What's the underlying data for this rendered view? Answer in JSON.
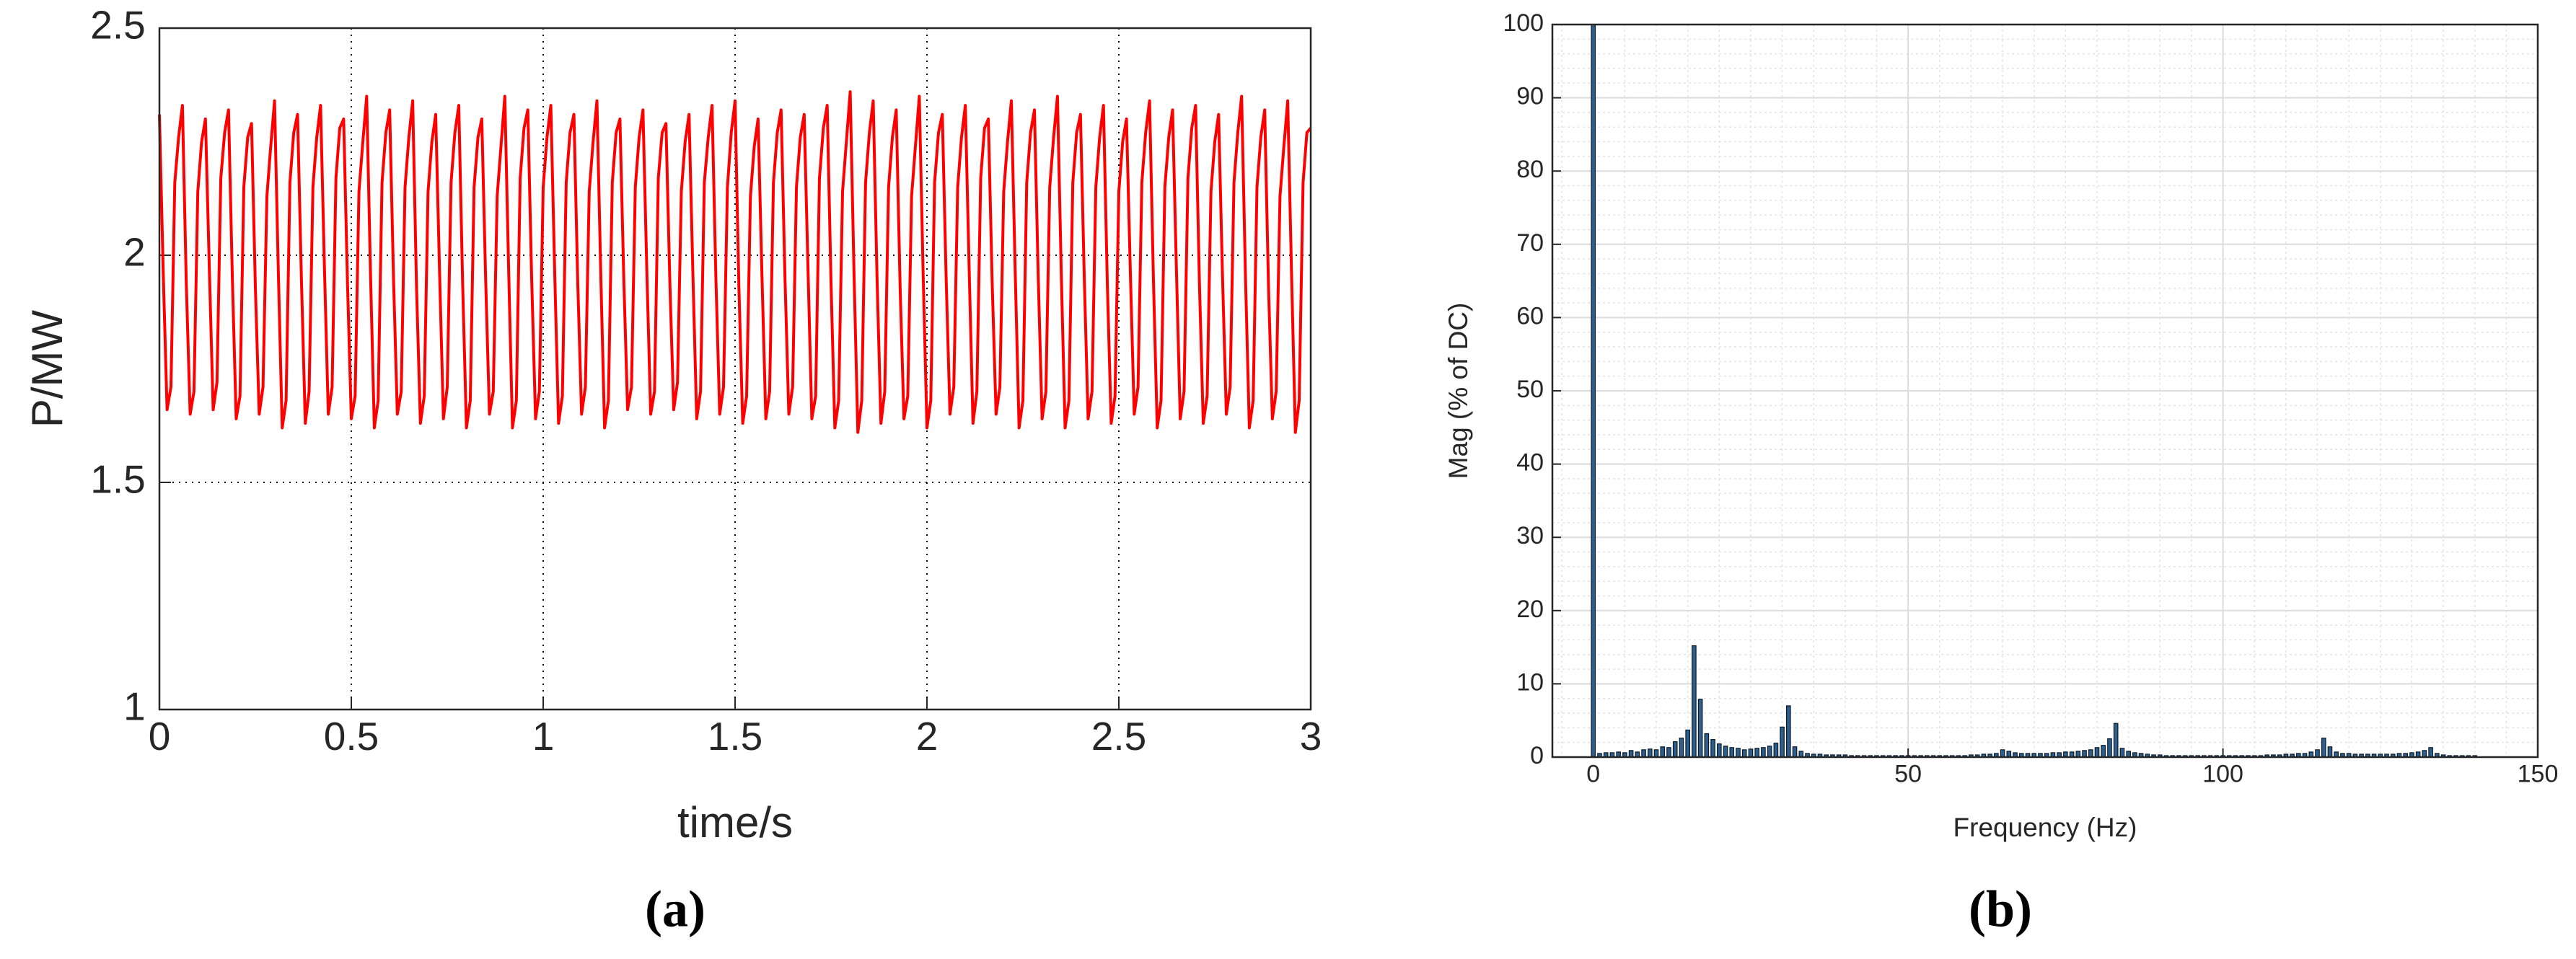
{
  "chart_data": [
    {
      "type": "line",
      "label": "(a)",
      "x_label": "time/s",
      "y_label": "P/MW",
      "color": "#ff0000",
      "xlim": [
        0,
        3
      ],
      "ylim": [
        1,
        2.5
      ],
      "xticks": [
        0,
        0.5,
        1,
        1.5,
        2,
        2.5,
        3
      ],
      "yticks": [
        1,
        1.5,
        2,
        2.5
      ],
      "grid": true,
      "x": [
        0,
        0.01,
        0.02,
        0.03,
        0.04,
        0.05,
        0.06,
        0.07,
        0.08,
        0.09,
        0.1,
        0.11,
        0.12,
        0.13,
        0.14,
        0.15,
        0.16,
        0.17,
        0.18,
        0.19,
        0.2,
        0.21,
        0.22,
        0.23,
        0.24,
        0.25,
        0.26,
        0.27,
        0.28,
        0.29,
        0.3,
        0.31,
        0.32,
        0.33,
        0.34,
        0.35,
        0.36,
        0.37,
        0.38,
        0.39,
        0.4,
        0.41,
        0.42,
        0.43,
        0.44,
        0.45,
        0.46,
        0.47,
        0.48,
        0.49,
        0.5,
        0.51,
        0.52,
        0.53,
        0.54,
        0.55,
        0.56,
        0.57,
        0.58,
        0.59,
        0.6,
        0.61,
        0.62,
        0.63,
        0.64,
        0.65,
        0.66,
        0.67,
        0.68,
        0.69,
        0.7,
        0.71,
        0.72,
        0.73,
        0.74,
        0.75,
        0.76,
        0.77,
        0.78,
        0.79,
        0.8,
        0.81,
        0.82,
        0.83,
        0.84,
        0.85,
        0.86,
        0.87,
        0.88,
        0.89,
        0.9,
        0.91,
        0.92,
        0.93,
        0.94,
        0.95,
        0.96,
        0.97,
        0.98,
        0.99,
        1,
        1.01,
        1.02,
        1.03,
        1.04,
        1.05,
        1.06,
        1.07,
        1.08,
        1.09,
        1.1,
        1.11,
        1.12,
        1.13,
        1.14,
        1.15,
        1.16,
        1.17,
        1.18,
        1.19,
        1.2,
        1.21,
        1.22,
        1.23,
        1.24,
        1.25,
        1.26,
        1.27,
        1.28,
        1.29,
        1.3,
        1.31,
        1.32,
        1.33,
        1.34,
        1.35,
        1.36,
        1.37,
        1.38,
        1.39,
        1.4,
        1.41,
        1.42,
        1.43,
        1.44,
        1.45,
        1.46,
        1.47,
        1.48,
        1.49,
        1.5,
        1.51,
        1.52,
        1.53,
        1.54,
        1.55,
        1.56,
        1.57,
        1.58,
        1.59,
        1.6,
        1.61,
        1.62,
        1.63,
        1.64,
        1.65,
        1.66,
        1.67,
        1.68,
        1.69,
        1.7,
        1.71,
        1.72,
        1.73,
        1.74,
        1.75,
        1.76,
        1.77,
        1.78,
        1.79,
        1.8,
        1.81,
        1.82,
        1.83,
        1.84,
        1.85,
        1.86,
        1.87,
        1.88,
        1.89,
        1.9,
        1.91,
        1.92,
        1.93,
        1.94,
        1.95,
        1.96,
        1.97,
        1.98,
        1.99,
        2,
        2.01,
        2.02,
        2.03,
        2.04,
        2.05,
        2.06,
        2.07,
        2.08,
        2.09,
        2.1,
        2.11,
        2.12,
        2.13,
        2.14,
        2.15,
        2.16,
        2.17,
        2.18,
        2.19,
        2.2,
        2.21,
        2.22,
        2.23,
        2.24,
        2.25,
        2.26,
        2.27,
        2.28,
        2.29,
        2.3,
        2.31,
        2.32,
        2.33,
        2.34,
        2.35,
        2.36,
        2.37,
        2.38,
        2.39,
        2.4,
        2.41,
        2.42,
        2.43,
        2.44,
        2.45,
        2.46,
        2.47,
        2.48,
        2.49,
        2.5,
        2.51,
        2.52,
        2.53,
        2.54,
        2.55,
        2.56,
        2.57,
        2.58,
        2.59,
        2.6,
        2.61,
        2.62,
        2.63,
        2.64,
        2.65,
        2.66,
        2.67,
        2.68,
        2.69,
        2.7,
        2.71,
        2.72,
        2.73,
        2.74,
        2.75,
        2.76,
        2.77,
        2.78,
        2.79,
        2.8,
        2.81,
        2.82,
        2.83,
        2.84,
        2.85,
        2.86,
        2.87,
        2.88,
        2.89,
        2.9,
        2.91,
        2.92,
        2.93,
        2.94,
        2.95,
        2.96,
        2.97,
        2.98,
        2.99,
        3
      ],
      "values": [
        2.31,
        1.96,
        1.66,
        1.71,
        2.16,
        2.26,
        2.33,
        1.94,
        1.65,
        1.7,
        2.14,
        2.25,
        2.3,
        1.97,
        1.66,
        1.72,
        2.17,
        2.27,
        2.32,
        1.95,
        1.64,
        1.69,
        2.15,
        2.26,
        2.29,
        1.93,
        1.65,
        1.71,
        2.13,
        2.24,
        2.34,
        1.96,
        1.62,
        1.68,
        2.16,
        2.27,
        2.31,
        1.95,
        1.63,
        1.7,
        2.15,
        2.26,
        2.33,
        1.97,
        1.65,
        1.71,
        2.17,
        2.28,
        2.3,
        1.94,
        1.64,
        1.69,
        2.14,
        2.25,
        2.35,
        1.96,
        1.62,
        1.68,
        2.16,
        2.27,
        2.32,
        1.95,
        1.65,
        1.7,
        2.15,
        2.26,
        2.34,
        1.93,
        1.63,
        1.69,
        2.14,
        2.25,
        2.31,
        1.96,
        1.64,
        1.71,
        2.16,
        2.27,
        2.33,
        1.94,
        1.62,
        1.68,
        2.15,
        2.26,
        2.3,
        1.95,
        1.65,
        1.7,
        2.13,
        2.24,
        2.35,
        1.97,
        1.62,
        1.68,
        2.17,
        2.28,
        2.32,
        1.95,
        1.64,
        1.7,
        2.15,
        2.26,
        2.33,
        1.96,
        1.63,
        1.69,
        2.16,
        2.27,
        2.31,
        1.94,
        1.65,
        1.71,
        2.14,
        2.25,
        2.34,
        1.96,
        1.62,
        1.68,
        2.16,
        2.27,
        2.3,
        1.95,
        1.66,
        1.71,
        2.15,
        2.26,
        2.32,
        1.97,
        1.65,
        1.7,
        2.17,
        2.27,
        2.29,
        1.94,
        1.66,
        1.72,
        2.14,
        2.25,
        2.31,
        1.96,
        1.64,
        1.7,
        2.16,
        2.26,
        2.33,
        1.95,
        1.65,
        1.71,
        2.15,
        2.27,
        2.34,
        1.93,
        1.63,
        1.69,
        2.13,
        2.24,
        2.3,
        1.96,
        1.64,
        1.7,
        2.16,
        2.27,
        2.32,
        1.95,
        1.65,
        1.71,
        2.15,
        2.26,
        2.31,
        1.97,
        1.64,
        1.69,
        2.17,
        2.28,
        2.33,
        1.94,
        1.62,
        1.68,
        2.14,
        2.25,
        2.36,
        1.96,
        1.61,
        1.68,
        2.16,
        2.27,
        2.34,
        1.95,
        1.63,
        1.7,
        2.15,
        2.26,
        2.32,
        1.93,
        1.64,
        1.69,
        2.13,
        2.24,
        2.35,
        1.96,
        1.62,
        1.68,
        2.16,
        2.27,
        2.31,
        1.95,
        1.65,
        1.71,
        2.15,
        2.26,
        2.33,
        1.97,
        1.63,
        1.7,
        2.17,
        2.28,
        2.3,
        1.94,
        1.65,
        1.71,
        2.14,
        2.25,
        2.34,
        1.96,
        1.62,
        1.68,
        2.16,
        2.27,
        2.32,
        1.95,
        1.64,
        1.7,
        2.15,
        2.26,
        2.35,
        1.96,
        1.62,
        1.68,
        2.16,
        2.27,
        2.31,
        1.95,
        1.64,
        1.7,
        2.15,
        2.26,
        2.33,
        1.94,
        1.63,
        1.69,
        2.14,
        2.25,
        2.3,
        1.96,
        1.65,
        1.71,
        2.16,
        2.27,
        2.34,
        1.95,
        1.62,
        1.68,
        2.15,
        2.26,
        2.32,
        1.97,
        1.64,
        1.7,
        2.17,
        2.28,
        2.33,
        1.94,
        1.63,
        1.69,
        2.14,
        2.25,
        2.31,
        1.96,
        1.65,
        1.71,
        2.16,
        2.27,
        2.35,
        1.95,
        1.62,
        1.68,
        2.15,
        2.26,
        2.32,
        1.93,
        1.64,
        1.7,
        2.13,
        2.24,
        2.34,
        1.96,
        1.61,
        1.68,
        2.16,
        2.27,
        2.28
      ]
    },
    {
      "type": "bar",
      "label": "(b)",
      "x_label": "Frequency (Hz)",
      "y_label": "Mag (% of DC)",
      "color": "#2e5f8c",
      "xlim": [
        -6.5,
        150
      ],
      "ylim": [
        0,
        100
      ],
      "xticks": [
        0,
        50,
        100,
        150
      ],
      "yticks": [
        0,
        10,
        20,
        30,
        40,
        50,
        60,
        70,
        80,
        90,
        100
      ],
      "grid": true,
      "minor_grid": true,
      "x": [
        0,
        1,
        2,
        3,
        4,
        5,
        6,
        7,
        8,
        9,
        10,
        11,
        12,
        13,
        14,
        15,
        16,
        17,
        18,
        19,
        20,
        21,
        22,
        23,
        24,
        25,
        26,
        27,
        28,
        29,
        30,
        31,
        32,
        33,
        34,
        35,
        36,
        37,
        38,
        39,
        40,
        41,
        42,
        43,
        44,
        45,
        46,
        47,
        48,
        49,
        50,
        51,
        52,
        53,
        54,
        55,
        56,
        57,
        58,
        59,
        60,
        61,
        62,
        63,
        64,
        65,
        66,
        67,
        68,
        69,
        70,
        71,
        72,
        73,
        74,
        75,
        76,
        77,
        78,
        79,
        80,
        81,
        82,
        83,
        84,
        85,
        86,
        87,
        88,
        89,
        90,
        91,
        92,
        93,
        94,
        95,
        96,
        97,
        98,
        99,
        100,
        101,
        102,
        103,
        104,
        105,
        106,
        107,
        108,
        109,
        110,
        111,
        112,
        113,
        114,
        115,
        116,
        117,
        118,
        119,
        120,
        121,
        122,
        123,
        124,
        125,
        126,
        127,
        128,
        129,
        130,
        131,
        132,
        133,
        134,
        135,
        136,
        137,
        138,
        139,
        140
      ],
      "values": [
        100,
        0.5,
        0.6,
        0.6,
        0.7,
        0.6,
        0.9,
        0.7,
        1.0,
        1.1,
        1.0,
        1.4,
        1.3,
        2.1,
        2.6,
        3.7,
        15.2,
        7.9,
        3.2,
        2.4,
        1.8,
        1.5,
        1.3,
        1.2,
        1.0,
        1.1,
        1.2,
        1.3,
        1.5,
        1.9,
        4.1,
        7.0,
        1.4,
        0.8,
        0.5,
        0.4,
        0.4,
        0.3,
        0.3,
        0.3,
        0.3,
        0.2,
        0.2,
        0.2,
        0.2,
        0.2,
        0.2,
        0.2,
        0.2,
        0.2,
        0.2,
        0.2,
        0.2,
        0.2,
        0.2,
        0.2,
        0.2,
        0.2,
        0.2,
        0.2,
        0.3,
        0.3,
        0.4,
        0.4,
        0.5,
        1.0,
        0.8,
        0.6,
        0.5,
        0.5,
        0.5,
        0.5,
        0.5,
        0.6,
        0.6,
        0.7,
        0.7,
        0.8,
        0.9,
        1.0,
        1.3,
        1.6,
        2.5,
        4.6,
        1.2,
        0.8,
        0.6,
        0.5,
        0.4,
        0.3,
        0.3,
        0.2,
        0.2,
        0.2,
        0.2,
        0.2,
        0.2,
        0.2,
        0.2,
        0.2,
        0.2,
        0.2,
        0.2,
        0.2,
        0.2,
        0.2,
        0.2,
        0.3,
        0.3,
        0.3,
        0.4,
        0.4,
        0.5,
        0.5,
        0.7,
        1.0,
        2.6,
        1.4,
        0.7,
        0.5,
        0.5,
        0.4,
        0.4,
        0.4,
        0.4,
        0.4,
        0.4,
        0.4,
        0.5,
        0.5,
        0.6,
        0.7,
        0.9,
        1.3,
        0.5,
        0.3,
        0.2,
        0.2,
        0.2,
        0.2,
        0.2
      ]
    }
  ]
}
